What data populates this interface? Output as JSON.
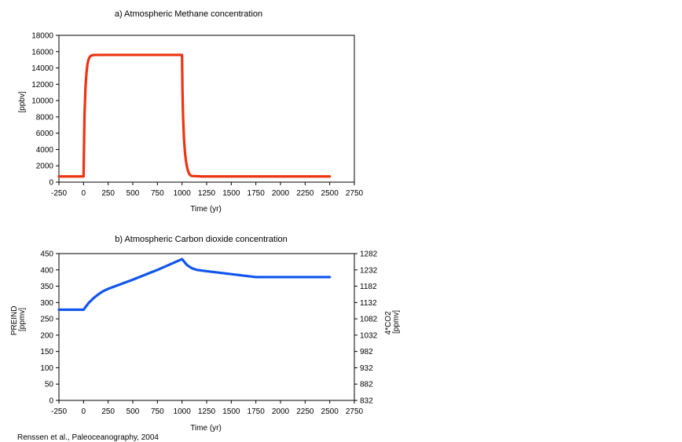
{
  "credit": "Renssen et al., Paleoceanography, 2004",
  "chart_data": [
    {
      "id": "methane",
      "type": "line",
      "title": "a) Atmospheric Methane concentration",
      "xlabel": "Time (yr)",
      "ylabel": "[ppbv]",
      "xlim": [
        -250,
        2750
      ],
      "ylim": [
        0,
        18000
      ],
      "xticks": [
        -250,
        0,
        250,
        500,
        750,
        1000,
        1250,
        1500,
        1750,
        2000,
        2250,
        2500,
        2750
      ],
      "yticks": [
        0,
        2000,
        4000,
        6000,
        8000,
        10000,
        12000,
        14000,
        16000,
        18000
      ],
      "grid": false,
      "color": "#ee3311",
      "x": [
        -250,
        -1,
        0,
        10,
        20,
        30,
        40,
        50,
        60,
        70,
        80,
        90,
        100,
        150,
        200,
        300,
        500,
        700,
        900,
        980,
        1000,
        1005,
        1010,
        1020,
        1030,
        1040,
        1050,
        1060,
        1070,
        1080,
        1090,
        1100,
        1200,
        1500,
        2000,
        2500
      ],
      "y": [
        700,
        700,
        700,
        8300,
        11700,
        13400,
        14500,
        15000,
        15300,
        15450,
        15530,
        15560,
        15580,
        15600,
        15600,
        15600,
        15600,
        15600,
        15600,
        15600,
        15580,
        11000,
        8300,
        5300,
        3600,
        2600,
        1900,
        1400,
        1100,
        900,
        800,
        750,
        700,
        700,
        700,
        700
      ]
    },
    {
      "id": "co2",
      "type": "line",
      "title": "b) Atmospheric Carbon dioxide concentration",
      "xlabel": "Time (yr)",
      "ylabel": "PREIND [ppmv]",
      "ylabel_lines": [
        "PREIND",
        "[ppmv]"
      ],
      "y2label": "4*CO2 [ppmv]",
      "y2label_lines": [
        "4*CO2",
        "[ppmv]"
      ],
      "xlim": [
        -250,
        2750
      ],
      "ylim": [
        0,
        450
      ],
      "xticks": [
        -250,
        0,
        250,
        500,
        750,
        1000,
        1250,
        1500,
        1750,
        2000,
        2250,
        2500,
        2750
      ],
      "yticks": [
        0,
        50,
        100,
        150,
        200,
        250,
        300,
        350,
        400,
        450
      ],
      "y2ticks": [
        832,
        882,
        932,
        982,
        1032,
        1082,
        1132,
        1182,
        1232,
        1282
      ],
      "grid": false,
      "color": "#1155ee",
      "x": [
        -250,
        0,
        25,
        50,
        100,
        150,
        200,
        250,
        500,
        750,
        1000,
        1050,
        1100,
        1150,
        1250,
        1500,
        1750,
        2000,
        2500
      ],
      "y": [
        278,
        278,
        288,
        298,
        313,
        325,
        335,
        342,
        370,
        400,
        433,
        415,
        405,
        400,
        396,
        387,
        378,
        378,
        378
      ]
    }
  ]
}
